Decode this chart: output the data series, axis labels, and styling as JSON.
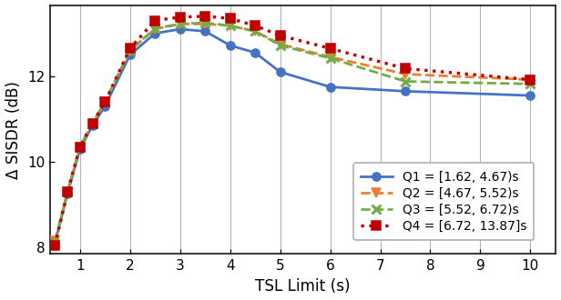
{
  "x": [
    0.5,
    0.75,
    1.0,
    1.25,
    1.5,
    2.0,
    2.5,
    3.0,
    3.5,
    4.0,
    4.5,
    5.0,
    6.0,
    7.5,
    10.0
  ],
  "Q1": [
    8.1,
    9.25,
    10.3,
    10.85,
    11.3,
    12.5,
    13.0,
    13.1,
    13.05,
    12.72,
    12.55,
    12.1,
    11.75,
    11.65,
    11.55
  ],
  "Q2": [
    8.15,
    9.3,
    10.35,
    10.9,
    11.4,
    12.6,
    13.1,
    13.22,
    13.22,
    13.18,
    13.05,
    12.75,
    12.45,
    12.05,
    11.92
  ],
  "Q3": [
    8.1,
    9.3,
    10.35,
    10.9,
    11.4,
    12.6,
    13.12,
    13.22,
    13.25,
    13.18,
    13.05,
    12.72,
    12.42,
    11.88,
    11.82
  ],
  "Q4": [
    8.05,
    9.3,
    10.35,
    10.9,
    11.4,
    12.65,
    13.3,
    13.38,
    13.4,
    13.35,
    13.18,
    12.95,
    12.65,
    12.18,
    11.92
  ],
  "Q1_label": "Q1 = [1.62, 4.67)s",
  "Q2_label": "Q2 = [4.67, 5.52)s",
  "Q3_label": "Q3 = [5.52, 6.72)s",
  "Q4_label": "Q4 = [6.72, 13.87]s",
  "Q1_color": "#4472c4",
  "Q2_color": "#ed7d31",
  "Q3_color": "#70ad47",
  "Q4_color": "#c00000",
  "xlabel": "TSL Limit (s)",
  "ylabel": "Δ SISDR (dB)",
  "xlim": [
    0.4,
    10.5
  ],
  "ylim": [
    7.85,
    13.65
  ],
  "yticks": [
    8,
    10,
    12
  ],
  "xticks": [
    1,
    2,
    3,
    4,
    5,
    6,
    7,
    8,
    9,
    10
  ]
}
